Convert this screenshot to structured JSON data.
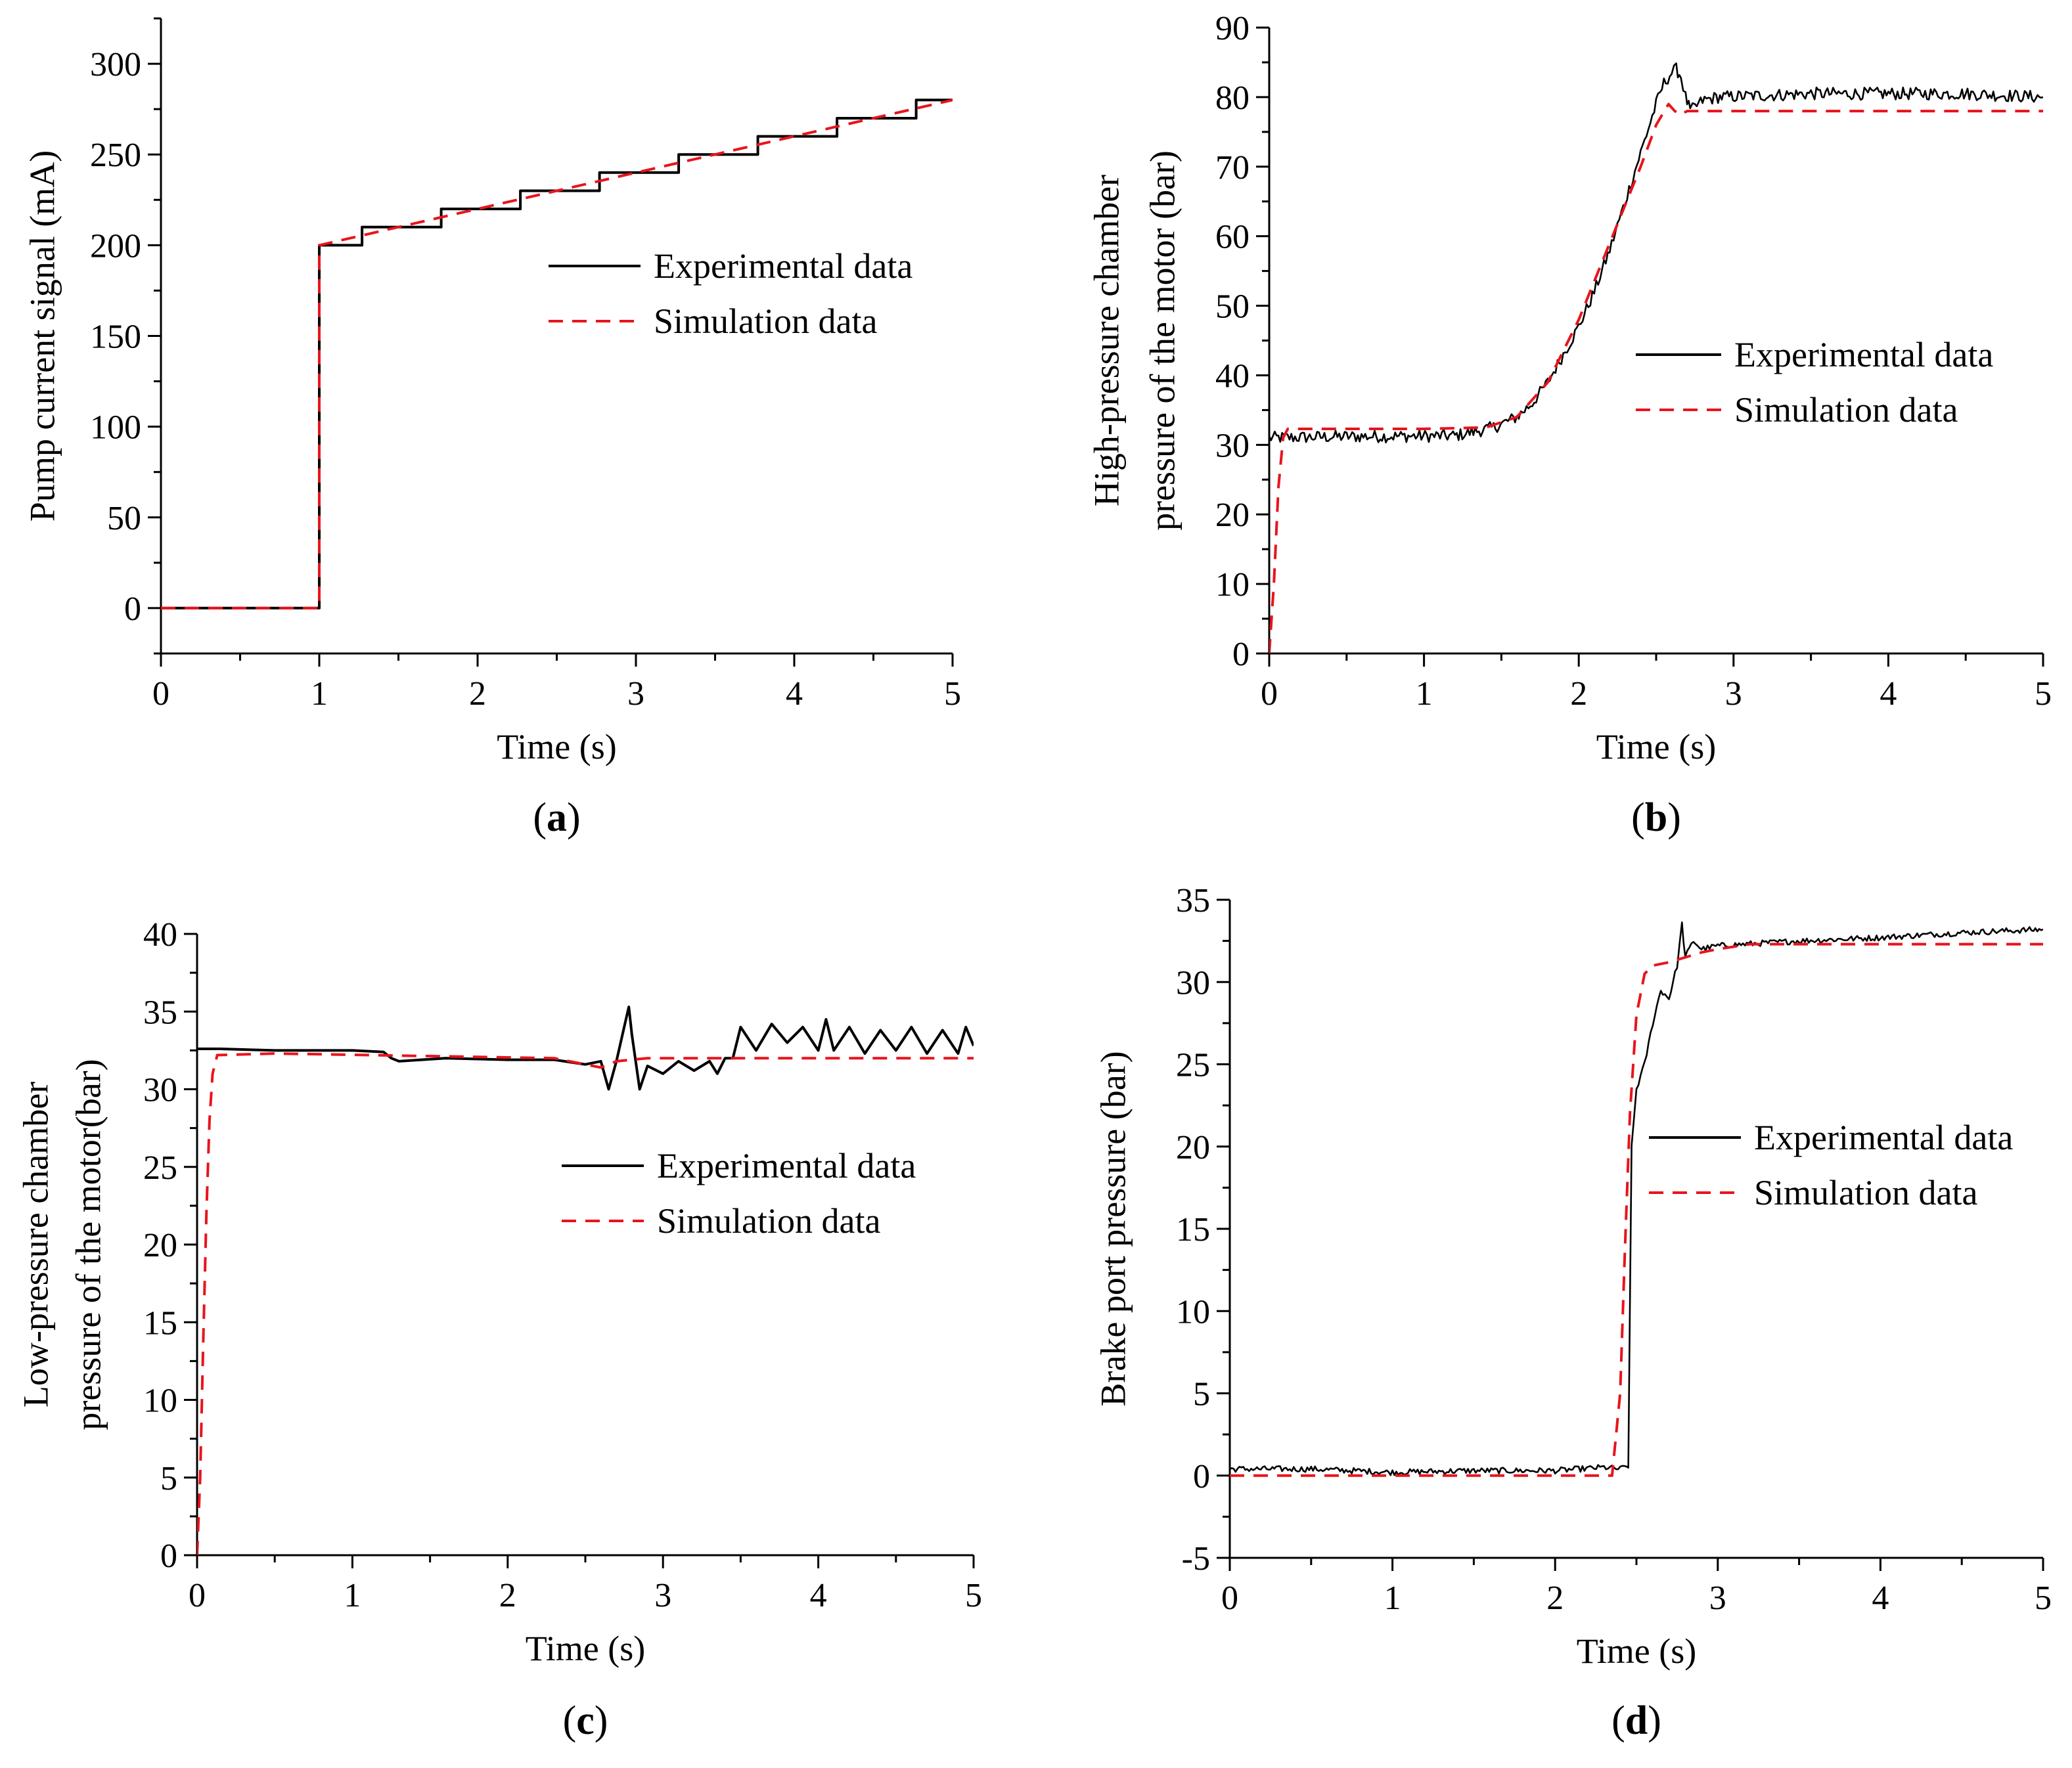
{
  "colors": {
    "experimental": "#000000",
    "simulation": "#e8141c",
    "axis": "#000000"
  },
  "chart_data": [
    {
      "id": "a",
      "type": "line",
      "caption": "a",
      "xlabel": "Time (s)",
      "ylabel": "Pump current signal (mA)",
      "xlim": [
        0,
        5
      ],
      "ylim": [
        -25,
        325
      ],
      "xticks": [
        0,
        1,
        2,
        3,
        4,
        5
      ],
      "yticks": [
        0,
        50,
        100,
        150,
        200,
        250,
        300
      ],
      "grid": false,
      "legend_position": "center-right",
      "series": [
        {
          "name": "Experimental data",
          "style": "solid",
          "x": [
            0,
            1.0,
            1.0,
            1.27,
            1.27,
            1.77,
            1.77,
            2.27,
            2.27,
            2.77,
            2.77,
            3.27,
            3.27,
            3.77,
            3.77,
            4.27,
            4.27,
            4.77,
            4.77,
            5.0
          ],
          "y": [
            0,
            0,
            200,
            200,
            210,
            210,
            220,
            220,
            230,
            230,
            240,
            240,
            250,
            250,
            260,
            260,
            270,
            270,
            280,
            280
          ]
        },
        {
          "name": "Simulation data",
          "style": "dashed",
          "x": [
            0,
            1.0,
            1.0,
            5.0
          ],
          "y": [
            0,
            0,
            200,
            280
          ]
        }
      ]
    },
    {
      "id": "b",
      "type": "line",
      "caption": "b",
      "xlabel": "Time (s)",
      "ylabel": [
        "High-pressure chamber",
        "pressure of the motor (bar)"
      ],
      "xlim": [
        0,
        5
      ],
      "ylim": [
        0,
        90
      ],
      "xticks": [
        0,
        1,
        2,
        3,
        4,
        5
      ],
      "yticks": [
        0,
        10,
        20,
        30,
        40,
        50,
        60,
        70,
        80,
        90
      ],
      "grid": false,
      "legend_position": "center-right",
      "series": [
        {
          "name": "Experimental data",
          "style": "solid",
          "noise": 0.9,
          "x": [
            0,
            0.5,
            1.2,
            1.45,
            1.6,
            1.7,
            1.8,
            1.9,
            2.0,
            2.1,
            2.2,
            2.3,
            2.4,
            2.5,
            2.55,
            2.6,
            2.63,
            2.66,
            2.69,
            2.72,
            2.75,
            2.8,
            2.9,
            3.5,
            4.0,
            4.5,
            5.0
          ],
          "y": [
            31,
            31.2,
            31.3,
            32.5,
            34,
            36,
            39,
            43,
            47,
            52,
            58,
            65,
            72,
            79,
            82,
            83.5,
            84,
            83,
            80,
            78,
            78.5,
            79.5,
            80,
            80.5,
            80.5,
            80.5,
            80
          ]
        },
        {
          "name": "Simulation data",
          "style": "dashed",
          "x": [
            0,
            0.03,
            0.06,
            0.09,
            0.12,
            1.0,
            1.4,
            1.6,
            1.8,
            2.0,
            2.2,
            2.4,
            2.5,
            2.58,
            2.62,
            2.66,
            2.7,
            2.75,
            3.0,
            5.0
          ],
          "y": [
            0,
            10,
            24,
            31,
            32.3,
            32.3,
            32.5,
            34,
            39,
            48,
            59,
            70,
            76,
            79,
            78,
            77.5,
            78,
            78,
            78,
            78
          ]
        }
      ]
    },
    {
      "id": "c",
      "type": "line",
      "caption": "c",
      "xlabel": "Time (s)",
      "ylabel": [
        "Low-pressure chamber",
        "pressure of the motor(bar)"
      ],
      "xlim": [
        0,
        5
      ],
      "ylim": [
        0,
        40
      ],
      "xticks": [
        0,
        1,
        2,
        3,
        4,
        5
      ],
      "yticks": [
        0,
        5,
        10,
        15,
        20,
        25,
        30,
        35,
        40
      ],
      "grid": false,
      "legend_position": "center-right",
      "series": [
        {
          "name": "Experimental data",
          "style": "solid",
          "x": [
            0,
            0.15,
            0.5,
            1.0,
            1.2,
            1.25,
            1.3,
            1.6,
            2.0,
            2.3,
            2.5,
            2.6,
            2.65,
            2.7,
            2.75,
            2.78,
            2.8,
            2.85,
            2.9,
            3.0,
            3.1,
            3.2,
            3.3,
            3.35,
            3.4,
            3.45,
            3.5,
            3.6,
            3.7,
            3.8,
            3.9,
            4.0,
            4.05,
            4.1,
            4.2,
            4.3,
            4.4,
            4.5,
            4.6,
            4.7,
            4.8,
            4.9,
            4.95,
            5.0
          ],
          "y": [
            32.6,
            32.6,
            32.5,
            32.5,
            32.4,
            32.0,
            31.8,
            32.0,
            31.9,
            31.9,
            31.6,
            31.8,
            30.0,
            31.8,
            34.0,
            35.3,
            33.5,
            30.0,
            31.5,
            31.0,
            31.8,
            31.2,
            31.8,
            31.0,
            32.0,
            32.0,
            34.0,
            32.5,
            34.2,
            33.0,
            34.0,
            32.5,
            34.5,
            32.5,
            34.0,
            32.3,
            33.8,
            32.5,
            34.0,
            32.3,
            33.8,
            32.3,
            34.0,
            32.8
          ]
        },
        {
          "name": "Simulation data",
          "style": "dashed",
          "x": [
            0,
            0.02,
            0.04,
            0.06,
            0.08,
            0.1,
            0.13,
            0.5,
            2.3,
            2.5,
            2.6,
            2.7,
            2.9,
            5.0
          ],
          "y": [
            0,
            5,
            14,
            22,
            28,
            31,
            32.2,
            32.3,
            32.0,
            31.6,
            31.4,
            31.8,
            32.0,
            32.0
          ]
        }
      ]
    },
    {
      "id": "d",
      "type": "line",
      "caption": "d",
      "xlabel": "Time (s)",
      "ylabel": "Brake port pressure (bar)",
      "xlim": [
        0,
        5
      ],
      "ylim": [
        -5,
        35
      ],
      "xticks": [
        0,
        1,
        2,
        3,
        4,
        5
      ],
      "yticks": [
        -5,
        0,
        5,
        10,
        15,
        20,
        25,
        30,
        35
      ],
      "grid": false,
      "legend_position": "center-right",
      "series": [
        {
          "name": "Experimental data",
          "style": "solid",
          "noise": 0.18,
          "x": [
            0,
            0.5,
            1.0,
            1.5,
            2.0,
            2.3,
            2.4,
            2.45,
            2.47,
            2.5,
            2.55,
            2.6,
            2.65,
            2.7,
            2.75,
            2.78,
            2.8,
            2.85,
            2.9,
            3.0,
            3.5,
            4.0,
            4.5,
            5.0
          ],
          "y": [
            0.4,
            0.4,
            0.2,
            0.3,
            0.3,
            0.5,
            0.4,
            0.6,
            20,
            23.5,
            25,
            27.5,
            29.5,
            29.0,
            31.0,
            33.5,
            31.5,
            32.5,
            32.0,
            32.2,
            32.5,
            32.7,
            33.0,
            33.2
          ]
        },
        {
          "name": "Simulation data",
          "style": "dashed",
          "x": [
            0,
            2.35,
            2.4,
            2.43,
            2.46,
            2.5,
            2.55,
            2.6,
            2.7,
            2.8,
            2.9,
            3.0,
            3.2,
            3.5,
            5.0
          ],
          "y": [
            0,
            0,
            5,
            14,
            22,
            28,
            30.5,
            31.0,
            31.2,
            31.5,
            31.8,
            32.0,
            32.3,
            32.3,
            32.3
          ]
        }
      ]
    }
  ]
}
